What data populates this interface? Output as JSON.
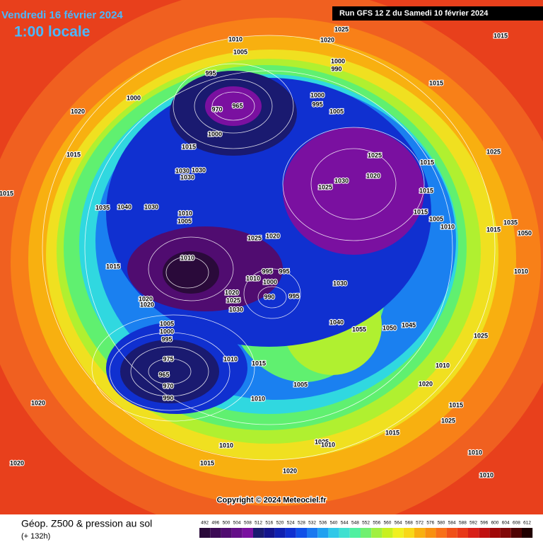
{
  "header": {
    "date": "Vendredi 16 février 2024",
    "time": "1:00 locale",
    "run": "Run GFS 12 Z du Samedi 10 février 2024"
  },
  "footer": {
    "title": "Géop. Z500 & pression au sol",
    "lead": "(+ 132h)",
    "copyright": "Copyright © 2024 Meteociel.fr"
  },
  "legend": {
    "levels": [
      492,
      496,
      500,
      504,
      508,
      512,
      516,
      520,
      524,
      528,
      532,
      536,
      540,
      544,
      548,
      552,
      556,
      560,
      564,
      568,
      572,
      576,
      580,
      584,
      588,
      592,
      596,
      600,
      604,
      608,
      612
    ],
    "colors": [
      "#2a0a3a",
      "#3c0a55",
      "#500c70",
      "#640e88",
      "#7a10a0",
      "#1a1a70",
      "#14148c",
      "#1020b0",
      "#1030d0",
      "#1050e8",
      "#1a78f0",
      "#20a0f0",
      "#30c8e8",
      "#40e0d0",
      "#50f0a0",
      "#70f070",
      "#a0f040",
      "#c8f020",
      "#f0f020",
      "#f8d818",
      "#f8b010",
      "#f89010",
      "#f87018",
      "#f05018",
      "#e83818",
      "#d82018",
      "#c01010",
      "#a00808",
      "#800808",
      "#500404",
      "#200000"
    ]
  },
  "isobar_labels": [
    "1025",
    "1020",
    "1015",
    "1010",
    "1005",
    "1000",
    "990",
    "995",
    "1000",
    "1000",
    "995",
    "970",
    "965",
    "1005",
    "1020",
    "1000",
    "1015",
    "1015",
    "1015",
    "1030",
    "1030",
    "1030",
    "1025",
    "1015",
    "1025",
    "1030",
    "1020",
    "1025",
    "1015",
    "1015",
    "1035",
    "1040",
    "1030",
    "1010",
    "1005",
    "1015",
    "1005",
    "1010",
    "1020",
    "1025",
    "1035",
    "1050",
    "1015",
    "1010",
    "995",
    "995",
    "1010",
    "1000",
    "990",
    "995",
    "1025",
    "1020",
    "1030",
    "1015",
    "1020",
    "1020",
    "1005",
    "1000",
    "995",
    "1030",
    "1040",
    "1055",
    "1050",
    "1045",
    "975",
    "965",
    "970",
    "990",
    "1010",
    "1015",
    "1005",
    "1010",
    "1010",
    "1020",
    "1015",
    "1020",
    "1025",
    "1010",
    "1010",
    "1015",
    "1025",
    "1015",
    "1010",
    "1020",
    "1020",
    "1025",
    "1010",
    "1010"
  ]
}
